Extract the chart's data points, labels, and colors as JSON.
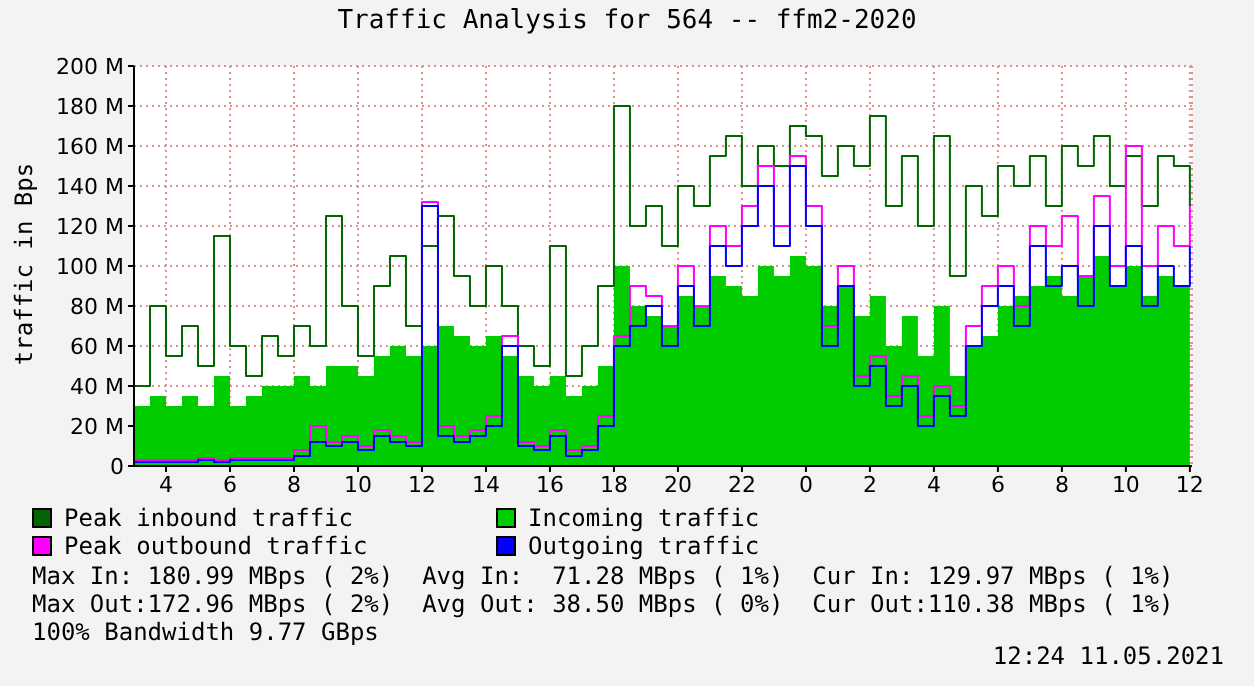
{
  "chart_data": {
    "type": "step",
    "title": "Traffic Analysis for 564 -- ffm2-2020",
    "ylabel": "traffic in Bps",
    "x": [
      "2021-05-10T03:00",
      "2021-05-10T03:30",
      "2021-05-10T04:00",
      "2021-05-10T04:30",
      "2021-05-10T05:00",
      "2021-05-10T05:30",
      "2021-05-10T06:00",
      "2021-05-10T06:30",
      "2021-05-10T07:00",
      "2021-05-10T07:30",
      "2021-05-10T08:00",
      "2021-05-10T08:30",
      "2021-05-10T09:00",
      "2021-05-10T09:30",
      "2021-05-10T10:00",
      "2021-05-10T10:30",
      "2021-05-10T11:00",
      "2021-05-10T11:30",
      "2021-05-10T12:00",
      "2021-05-10T12:30",
      "2021-05-10T13:00",
      "2021-05-10T13:30",
      "2021-05-10T14:00",
      "2021-05-10T14:30",
      "2021-05-10T15:00",
      "2021-05-10T15:30",
      "2021-05-10T16:00",
      "2021-05-10T16:30",
      "2021-05-10T17:00",
      "2021-05-10T17:30",
      "2021-05-10T18:00",
      "2021-05-10T18:30",
      "2021-05-10T19:00",
      "2021-05-10T19:30",
      "2021-05-10T20:00",
      "2021-05-10T20:30",
      "2021-05-10T21:00",
      "2021-05-10T21:30",
      "2021-05-10T22:00",
      "2021-05-10T22:30",
      "2021-05-10T23:00",
      "2021-05-10T23:30",
      "2021-05-11T00:00",
      "2021-05-11T00:30",
      "2021-05-11T01:00",
      "2021-05-11T01:30",
      "2021-05-11T02:00",
      "2021-05-11T02:30",
      "2021-05-11T03:00",
      "2021-05-11T03:30",
      "2021-05-11T04:00",
      "2021-05-11T04:30",
      "2021-05-11T05:00",
      "2021-05-11T05:30",
      "2021-05-11T06:00",
      "2021-05-11T06:30",
      "2021-05-11T07:00",
      "2021-05-11T07:30",
      "2021-05-11T08:00",
      "2021-05-11T08:30",
      "2021-05-11T09:00",
      "2021-05-11T09:30",
      "2021-05-11T10:00",
      "2021-05-11T10:30",
      "2021-05-11T11:00",
      "2021-05-11T11:30",
      "2021-05-11T12:00"
    ],
    "xlim": [
      "2021-05-10T03:00",
      "2021-05-11T12:04"
    ],
    "xticks": [
      {
        "value": "2021-05-10T04:00",
        "label": "4"
      },
      {
        "value": "2021-05-10T06:00",
        "label": "6"
      },
      {
        "value": "2021-05-10T08:00",
        "label": "8"
      },
      {
        "value": "2021-05-10T10:00",
        "label": "10"
      },
      {
        "value": "2021-05-10T12:00",
        "label": "12"
      },
      {
        "value": "2021-05-10T14:00",
        "label": "14"
      },
      {
        "value": "2021-05-10T16:00",
        "label": "16"
      },
      {
        "value": "2021-05-10T18:00",
        "label": "18"
      },
      {
        "value": "2021-05-10T20:00",
        "label": "20"
      },
      {
        "value": "2021-05-10T22:00",
        "label": "22"
      },
      {
        "value": "2021-05-11T00:00",
        "label": "0"
      },
      {
        "value": "2021-05-11T02:00",
        "label": "2"
      },
      {
        "value": "2021-05-11T04:00",
        "label": "4"
      },
      {
        "value": "2021-05-11T06:00",
        "label": "6"
      },
      {
        "value": "2021-05-11T08:00",
        "label": "8"
      },
      {
        "value": "2021-05-11T10:00",
        "label": "10"
      },
      {
        "value": "2021-05-11T12:00",
        "label": "12"
      }
    ],
    "ylim": [
      0,
      200
    ],
    "yticks": [
      {
        "value": 0,
        "label": "0"
      },
      {
        "value": 20,
        "label": "20 M"
      },
      {
        "value": 40,
        "label": "40 M"
      },
      {
        "value": 60,
        "label": "60 M"
      },
      {
        "value": 80,
        "label": "80 M"
      },
      {
        "value": 100,
        "label": "100 M"
      },
      {
        "value": 120,
        "label": "120 M"
      },
      {
        "value": 140,
        "label": "140 M"
      },
      {
        "value": 160,
        "label": "160 M"
      },
      {
        "value": 180,
        "label": "180 M"
      },
      {
        "value": 200,
        "label": "200 M"
      }
    ],
    "grid": true,
    "legend": "bottom",
    "series": [
      {
        "name": "Peak inbound traffic",
        "type": "step",
        "color": "#006600",
        "values": [
          40,
          80,
          55,
          70,
          50,
          115,
          60,
          45,
          65,
          55,
          70,
          60,
          125,
          80,
          55,
          90,
          105,
          70,
          110,
          125,
          95,
          80,
          100,
          80,
          60,
          50,
          110,
          45,
          60,
          90,
          180,
          120,
          130,
          110,
          140,
          130,
          155,
          165,
          140,
          160,
          150,
          170,
          165,
          145,
          160,
          150,
          175,
          130,
          155,
          120,
          165,
          95,
          140,
          125,
          150,
          140,
          155,
          130,
          160,
          150,
          165,
          140,
          155,
          130,
          155,
          150,
          130
        ]
      },
      {
        "name": "Incoming traffic",
        "type": "area",
        "color": "#00cc00",
        "values": [
          30,
          35,
          30,
          35,
          30,
          45,
          30,
          35,
          40,
          40,
          45,
          40,
          50,
          50,
          45,
          55,
          60,
          55,
          60,
          70,
          65,
          60,
          65,
          55,
          45,
          40,
          45,
          35,
          40,
          50,
          100,
          80,
          75,
          70,
          85,
          80,
          95,
          90,
          85,
          100,
          95,
          105,
          100,
          80,
          90,
          75,
          85,
          60,
          75,
          55,
          80,
          45,
          60,
          65,
          80,
          85,
          90,
          95,
          85,
          95,
          105,
          90,
          100,
          85,
          95,
          90,
          130
        ]
      },
      {
        "name": "Peak outbound traffic",
        "type": "step",
        "color": "#ff00ff",
        "values": [
          3,
          3,
          3,
          3,
          4,
          3,
          4,
          4,
          4,
          4,
          8,
          20,
          12,
          15,
          10,
          18,
          15,
          12,
          132,
          20,
          15,
          18,
          25,
          65,
          12,
          10,
          18,
          8,
          10,
          25,
          65,
          90,
          85,
          70,
          100,
          80,
          120,
          110,
          130,
          150,
          120,
          155,
          130,
          70,
          100,
          45,
          55,
          35,
          45,
          25,
          40,
          30,
          70,
          90,
          100,
          80,
          120,
          110,
          125,
          95,
          135,
          100,
          160,
          100,
          120,
          110,
          130
        ]
      },
      {
        "name": "Outgoing traffic",
        "type": "step",
        "color": "#0000ff",
        "values": [
          2,
          2,
          2,
          2,
          3,
          2,
          3,
          3,
          3,
          3,
          5,
          12,
          10,
          12,
          8,
          15,
          12,
          10,
          130,
          15,
          12,
          15,
          20,
          60,
          10,
          8,
          15,
          5,
          8,
          20,
          60,
          70,
          80,
          60,
          90,
          70,
          110,
          100,
          120,
          140,
          110,
          150,
          120,
          60,
          90,
          40,
          50,
          30,
          40,
          20,
          35,
          25,
          60,
          80,
          90,
          70,
          110,
          90,
          100,
          80,
          120,
          90,
          110,
          80,
          100,
          90,
          110
        ]
      }
    ],
    "annotations": [
      "Max In: 180.99 MBps ( 2%)  Avg In:  71.28 MBps ( 1%)  Cur In: 129.97 MBps ( 1%)",
      "Max Out:172.96 MBps ( 2%)  Avg Out: 38.50 MBps ( 0%)  Cur Out:110.38 MBps ( 1%)",
      "100% Bandwidth 9.77 GBps",
      "12:24 11.05.2021"
    ]
  }
}
